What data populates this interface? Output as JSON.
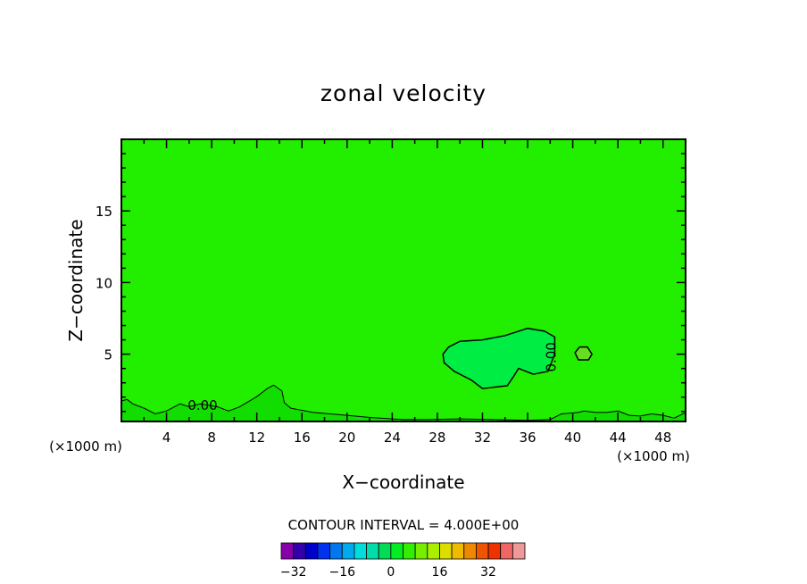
{
  "chart_data": {
    "type": "contour",
    "title": "zonal velocity",
    "xlabel": "X−coordinate",
    "ylabel": "Z−coordinate",
    "x_unit_left": "(×1000 m)",
    "x_unit_right": "(×1000 m)",
    "xlim": [
      0,
      50
    ],
    "ylim": [
      0.3,
      20
    ],
    "x_ticks": [
      4,
      8,
      12,
      16,
      20,
      24,
      28,
      32,
      36,
      40,
      44,
      48
    ],
    "y_ticks": [
      5,
      10,
      15
    ],
    "background_level": 0,
    "contour_interval_text": "CONTOUR INTERVAL = 4.000E+00",
    "contour_labels": [
      {
        "text": "0.00",
        "x": 7.2,
        "z": 1.1
      },
      {
        "text": "0.00",
        "x": 38.5,
        "z": 4.8
      }
    ],
    "regions": [
      {
        "name": "positive-core",
        "level": 4,
        "color": "#00ee44",
        "outline": [
          [
            28.5,
            5.0
          ],
          [
            29,
            5.5
          ],
          [
            30,
            5.9
          ],
          [
            32,
            6.0
          ],
          [
            34,
            6.3
          ],
          [
            36,
            6.8
          ],
          [
            37.5,
            6.6
          ],
          [
            38.4,
            6.2
          ],
          [
            38.4,
            5.0
          ],
          [
            37.8,
            3.8
          ],
          [
            36.5,
            3.6
          ],
          [
            35.2,
            4.0
          ],
          [
            34.8,
            3.5
          ],
          [
            34.2,
            2.8
          ],
          [
            32,
            2.6
          ],
          [
            31,
            3.2
          ],
          [
            29.5,
            3.8
          ],
          [
            28.6,
            4.4
          ]
        ]
      },
      {
        "name": "positive-blob",
        "level": 4,
        "color": "#66dd22",
        "outline": [
          [
            40.2,
            5.1
          ],
          [
            40.6,
            5.5
          ],
          [
            41.3,
            5.5
          ],
          [
            41.7,
            5.0
          ],
          [
            41.4,
            4.6
          ],
          [
            40.5,
            4.6
          ]
        ]
      }
    ],
    "boundary_contour": [
      [
        0,
        1.7
      ],
      [
        0.5,
        1.8
      ],
      [
        1,
        1.5
      ],
      [
        2,
        1.2
      ],
      [
        3,
        0.8
      ],
      [
        4,
        1.0
      ],
      [
        5.2,
        1.5
      ],
      [
        6,
        1.3
      ],
      [
        7,
        1.5
      ],
      [
        8.5,
        1.3
      ],
      [
        9.5,
        1.0
      ],
      [
        10.5,
        1.3
      ],
      [
        12,
        2.0
      ],
      [
        13,
        2.6
      ],
      [
        13.5,
        2.8
      ],
      [
        14.2,
        2.4
      ],
      [
        14.4,
        1.6
      ],
      [
        15,
        1.2
      ],
      [
        17,
        0.9
      ],
      [
        20,
        0.7
      ],
      [
        22,
        0.55
      ],
      [
        24,
        0.45
      ],
      [
        25,
        0.4
      ],
      [
        27,
        0.4
      ],
      [
        30,
        0.45
      ],
      [
        33,
        0.4
      ],
      [
        36,
        0.35
      ],
      [
        38,
        0.4
      ],
      [
        39,
        0.8
      ],
      [
        40.5,
        0.9
      ],
      [
        41,
        1.0
      ],
      [
        42,
        0.9
      ],
      [
        43,
        0.9
      ],
      [
        44,
        1.0
      ],
      [
        45,
        0.7
      ],
      [
        46,
        0.65
      ],
      [
        47,
        0.8
      ],
      [
        48,
        0.7
      ],
      [
        49,
        0.5
      ],
      [
        50,
        0.9
      ]
    ],
    "colorbar": {
      "colors": [
        "#8800aa",
        "#3300aa",
        "#0000cc",
        "#0033ee",
        "#0077ee",
        "#00aaee",
        "#00dddd",
        "#00ddaa",
        "#00dd55",
        "#00ee22",
        "#33ee00",
        "#77ee00",
        "#aaee00",
        "#dddd00",
        "#eebb00",
        "#ee8800",
        "#ee5500",
        "#ee3300",
        "#ee6666",
        "#ee9999"
      ],
      "tick_labels": [
        "−32",
        "−16",
        "0",
        "16",
        "32"
      ]
    }
  }
}
